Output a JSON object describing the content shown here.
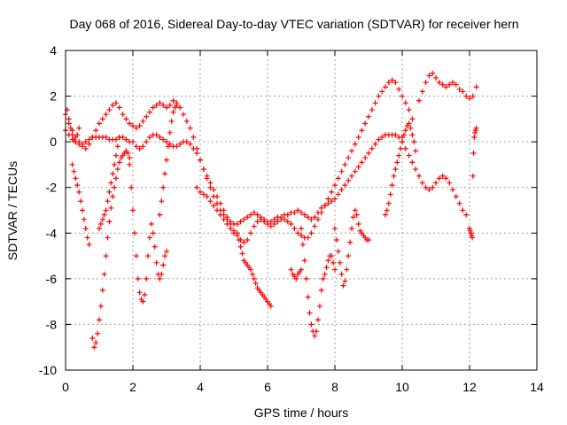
{
  "chart_data": {
    "type": "scatter",
    "title": "Day 068 of 2016, Sidereal Day-to-day VTEC variation (SDTVAR) for receiver hern",
    "xlabel": "GPS time / hours",
    "ylabel": "SDTVAR / TECUs",
    "xlim": [
      0,
      14
    ],
    "ylim": [
      -10,
      4
    ],
    "xticks": [
      0,
      2,
      4,
      6,
      8,
      10,
      12,
      14
    ],
    "yticks": [
      -10,
      -8,
      -6,
      -4,
      -2,
      0,
      2,
      4
    ],
    "grid": true,
    "marker": "+",
    "color": "#ff0000",
    "series": [
      {
        "x": [
          0.0,
          0.1,
          0.2,
          0.3,
          0.4,
          0.5,
          0.6,
          0.7,
          0.8,
          0.9,
          1.0,
          1.1,
          1.2,
          1.3,
          1.4,
          1.5,
          1.6,
          1.7,
          1.8,
          1.9,
          2.0,
          2.1,
          2.2,
          2.3,
          2.4,
          2.5,
          2.6,
          2.7,
          2.8,
          2.9,
          3.0,
          3.1,
          3.2,
          3.3,
          3.4,
          3.5,
          3.6,
          3.7,
          3.8,
          3.9,
          4.0,
          4.1,
          4.2,
          4.3,
          4.4,
          4.5,
          4.6,
          4.7,
          4.8,
          4.9,
          5.0,
          5.1,
          5.2,
          5.3,
          5.4,
          5.5,
          5.6,
          5.7,
          5.8,
          5.9,
          6.0,
          6.1,
          6.2,
          6.3,
          6.4,
          6.5,
          6.6,
          6.7,
          6.8,
          6.9,
          7.0,
          7.1,
          7.2,
          7.3,
          7.4,
          7.5,
          7.6,
          7.7,
          7.8,
          7.9,
          8.0,
          8.1,
          8.2,
          8.3,
          8.4,
          8.5,
          8.6,
          8.7,
          8.8,
          8.9,
          9.0,
          9.1,
          9.2,
          9.3,
          9.4,
          9.5,
          9.6,
          9.7,
          9.8,
          9.9,
          10.0,
          10.1,
          10.2,
          10.3
        ],
        "y": [
          1.2,
          0.8,
          0.5,
          0.2,
          0.0,
          -0.2,
          -0.3,
          -0.1,
          0.2,
          0.5,
          0.8,
          1.0,
          1.2,
          1.4,
          1.6,
          1.7,
          1.5,
          1.2,
          1.0,
          0.8,
          0.7,
          0.6,
          0.7,
          0.9,
          1.1,
          1.3,
          1.5,
          1.6,
          1.7,
          1.6,
          1.5,
          1.6,
          1.8,
          1.7,
          1.5,
          1.2,
          0.9,
          0.6,
          0.2,
          -0.3,
          -0.8,
          -1.2,
          -1.5,
          -1.8,
          -2.1,
          -2.4,
          -2.7,
          -3.0,
          -3.3,
          -3.6,
          -3.9,
          -4.1,
          -4.3,
          -4.4,
          -4.3,
          -4.0,
          -3.7,
          -3.5,
          -3.4,
          -3.5,
          -3.6,
          -3.7,
          -3.6,
          -3.5,
          -3.4,
          -3.4,
          -3.5,
          -3.6,
          -3.8,
          -4.0,
          -4.1,
          -4.2,
          -4.2,
          -4.0,
          -3.7,
          -3.4,
          -3.1,
          -2.8,
          -2.5,
          -2.2,
          -1.9,
          -1.6,
          -1.3,
          -1.0,
          -0.7,
          -0.4,
          -0.1,
          0.2,
          0.5,
          0.8,
          1.1,
          1.4,
          1.7,
          2.0,
          2.2,
          2.4,
          2.6,
          2.7,
          2.6,
          2.3,
          2.0,
          1.7,
          1.4,
          1.0
        ]
      },
      {
        "x": [
          0.0,
          0.1,
          0.2,
          0.3,
          0.4,
          0.5,
          0.6,
          0.7,
          0.8,
          0.9,
          1.0,
          1.1,
          1.2,
          1.3,
          1.4,
          1.5,
          1.6,
          1.7,
          1.8,
          1.9,
          2.0,
          2.1,
          2.2,
          2.3,
          2.4,
          2.5,
          2.6,
          2.7,
          2.8,
          2.9,
          3.0,
          3.1,
          3.2,
          3.3,
          3.4,
          3.5,
          3.6,
          3.7,
          3.8,
          3.9,
          4.0,
          4.1,
          4.2,
          4.3,
          4.4,
          4.5,
          4.6,
          4.7,
          4.8,
          4.9,
          5.0,
          5.1,
          5.2,
          5.3,
          5.4,
          5.5,
          5.6,
          5.7,
          5.8,
          5.9,
          6.0,
          6.1,
          6.2,
          6.3,
          6.4,
          6.5,
          6.6,
          6.7,
          6.8,
          6.9,
          7.0,
          7.1,
          7.2,
          7.3,
          7.4,
          7.5,
          7.6,
          7.7,
          7.8,
          7.9,
          8.0,
          8.1,
          8.2,
          8.3,
          8.4,
          8.5,
          8.6,
          8.7,
          8.8,
          8.9,
          9.0,
          9.1,
          9.2,
          9.3,
          9.4,
          9.5,
          9.6,
          9.7,
          9.8,
          9.9,
          10.0
        ],
        "y": [
          0.5,
          0.3,
          0.1,
          0.0,
          -0.1,
          -0.1,
          0.0,
          0.1,
          0.2,
          0.2,
          0.2,
          0.2,
          0.2,
          0.1,
          0.1,
          0.1,
          0.2,
          0.2,
          0.1,
          0.0,
          0.0,
          -0.2,
          -0.3,
          -0.2,
          0.0,
          0.2,
          0.3,
          0.3,
          0.2,
          0.1,
          0.0,
          -0.1,
          -0.2,
          -0.2,
          -0.1,
          0.0,
          0.0,
          -0.1,
          -0.3,
          -0.5,
          -0.8,
          -1.2,
          -1.6,
          -2.0,
          -2.4,
          -2.7,
          -3.0,
          -3.2,
          -3.4,
          -3.5,
          -3.6,
          -3.6,
          -3.5,
          -3.4,
          -3.3,
          -3.2,
          -3.1,
          -3.2,
          -3.3,
          -3.4,
          -3.5,
          -3.5,
          -3.4,
          -3.3,
          -3.3,
          -3.2,
          -3.2,
          -3.1,
          -3.1,
          -3.0,
          -3.1,
          -3.2,
          -3.3,
          -3.4,
          -3.3,
          -3.1,
          -2.9,
          -2.8,
          -2.7,
          -2.6,
          -2.5,
          -2.3,
          -2.1,
          -1.9,
          -1.7,
          -1.5,
          -1.3,
          -1.1,
          -0.9,
          -0.7,
          -0.5,
          -0.3,
          -0.1,
          0.1,
          0.2,
          0.3,
          0.3,
          0.3,
          0.3,
          0.2,
          0.2
        ]
      },
      {
        "x": [
          0.2,
          0.25,
          0.3,
          0.35,
          0.4,
          0.45,
          0.5,
          0.55,
          0.6,
          0.65,
          0.7
        ],
        "y": [
          -1.0,
          -1.3,
          -1.6,
          -1.9,
          -2.2,
          -2.6,
          -3.0,
          -3.4,
          -3.8,
          -4.2,
          -4.5
        ]
      },
      {
        "x": [
          0.8,
          0.85,
          0.9,
          0.95,
          1.0,
          1.05,
          1.1,
          1.15,
          1.2,
          1.25,
          1.3,
          1.35,
          1.4,
          1.45,
          1.5,
          1.55,
          1.6,
          1.65,
          1.7,
          1.75,
          1.8,
          1.85,
          1.9
        ],
        "y": [
          -8.6,
          -9.0,
          -8.8,
          -8.4,
          -7.8,
          -7.2,
          -6.5,
          -5.8,
          -5.0,
          -4.2,
          -3.5,
          -2.9,
          -2.4,
          -2.0,
          -1.6,
          -1.2,
          -0.9,
          -0.7,
          -0.6,
          -0.5,
          -0.4,
          -0.5,
          -0.7
        ]
      },
      {
        "x": [
          1.9,
          1.95,
          2.0,
          2.05,
          2.1,
          2.15,
          2.2,
          2.25,
          2.3,
          2.35,
          2.4,
          2.45,
          2.5,
          2.55,
          2.6,
          2.65,
          2.7,
          2.75,
          2.8,
          2.85,
          2.9,
          2.95,
          3.0
        ],
        "y": [
          -1.0,
          -2.0,
          -3.0,
          -4.0,
          -5.0,
          -6.0,
          -6.6,
          -6.9,
          -7.0,
          -6.7,
          -6.0,
          -5.0,
          -4.2,
          -3.6,
          -4.0,
          -4.6,
          -5.3,
          -5.8,
          -6.0,
          -5.8,
          -5.4,
          -5.0,
          -4.8
        ]
      },
      {
        "x": [
          2.8,
          2.85,
          2.9,
          2.95,
          3.0,
          3.05,
          3.1,
          3.15,
          3.2,
          3.25,
          3.3
        ],
        "y": [
          -3.2,
          -2.6,
          -2.0,
          -1.4,
          -0.8,
          -0.2,
          0.4,
          0.9,
          1.3,
          1.5,
          1.6
        ]
      },
      {
        "x": [
          5.1,
          5.15,
          5.2,
          5.25,
          5.3,
          5.35,
          5.4,
          5.45,
          5.5,
          5.55,
          5.6,
          5.65,
          5.7,
          5.75,
          5.8,
          5.85,
          5.9,
          5.95,
          6.0,
          6.05,
          6.1
        ],
        "y": [
          -4.0,
          -4.3,
          -4.6,
          -4.9,
          -5.2,
          -5.3,
          -5.4,
          -5.5,
          -5.6,
          -5.8,
          -6.0,
          -6.2,
          -6.4,
          -6.5,
          -6.6,
          -6.7,
          -6.8,
          -6.9,
          -7.0,
          -7.1,
          -7.2
        ]
      },
      {
        "x": [
          7.0,
          7.05,
          7.1,
          7.15,
          7.2,
          7.25,
          7.3,
          7.35,
          7.4,
          7.45,
          7.5,
          7.55,
          7.6,
          7.65,
          7.7,
          7.75,
          7.8,
          7.85,
          7.9,
          7.95,
          8.0
        ],
        "y": [
          -3.8,
          -4.5,
          -5.2,
          -6.0,
          -6.8,
          -7.5,
          -8.0,
          -8.3,
          -8.5,
          -8.3,
          -7.8,
          -7.2,
          -6.5,
          -6.0,
          -5.8,
          -5.5,
          -5.2,
          -5.0,
          -5.0,
          -5.3,
          -5.6
        ]
      },
      {
        "x": [
          10.5,
          10.6,
          10.7,
          10.8,
          10.9,
          11.0,
          11.1,
          11.2,
          11.3,
          11.4,
          11.5,
          11.6,
          11.7,
          11.8,
          11.9,
          12.0,
          12.1,
          12.2
        ],
        "y": [
          1.8,
          2.2,
          2.6,
          2.9,
          3.0,
          2.8,
          2.6,
          2.5,
          2.4,
          2.5,
          2.6,
          2.5,
          2.3,
          2.2,
          2.0,
          1.9,
          2.0,
          2.4
        ]
      },
      {
        "x": [
          10.0,
          10.1,
          10.2,
          10.3,
          10.4,
          10.5,
          10.6,
          10.7,
          10.8,
          10.9,
          11.0,
          11.1,
          11.2,
          11.3,
          11.4,
          11.5,
          11.6,
          11.7,
          11.8,
          11.9
        ],
        "y": [
          0.0,
          -0.3,
          -0.6,
          -0.9,
          -1.2,
          -1.5,
          -1.8,
          -2.0,
          -2.1,
          -2.0,
          -1.8,
          -1.6,
          -1.5,
          -1.6,
          -1.8,
          -2.1,
          -2.4,
          -2.7,
          -3.0,
          -3.2
        ]
      },
      {
        "x": [
          12.0,
          12.02,
          12.04,
          12.06,
          12.08,
          12.1,
          12.12,
          12.14,
          12.16,
          12.18,
          12.2
        ],
        "y": [
          -3.8,
          -3.9,
          -4.0,
          -4.1,
          -4.2,
          -1.5,
          -0.5,
          0.2,
          0.4,
          0.5,
          0.6
        ]
      },
      {
        "x": [
          9.5,
          9.55,
          9.6,
          9.65,
          9.7,
          9.75,
          9.8,
          9.85,
          9.9,
          9.95,
          10.0,
          10.05,
          10.1,
          10.15,
          10.2,
          10.25,
          10.3,
          10.35,
          10.4
        ],
        "y": [
          -3.2,
          -3.0,
          -2.7,
          -2.3,
          -1.9,
          -1.5,
          -1.2,
          -0.9,
          -0.6,
          -0.3,
          0.0,
          0.3,
          0.5,
          0.7,
          0.8,
          0.6,
          0.3,
          0.0,
          -0.4
        ]
      },
      {
        "x": [
          8.0,
          8.05,
          8.1,
          8.15,
          8.2,
          8.25,
          8.3,
          8.35,
          8.4,
          8.45,
          8.5,
          8.55,
          8.6,
          8.65,
          8.7,
          8.75,
          8.8,
          8.85,
          8.9,
          8.95,
          9.0
        ],
        "y": [
          -3.8,
          -4.3,
          -4.8,
          -5.3,
          -5.8,
          -6.3,
          -6.1,
          -5.6,
          -5.0,
          -4.4,
          -3.8,
          -3.3,
          -3.0,
          -3.2,
          -3.6,
          -3.9,
          -4.0,
          -4.1,
          -4.2,
          -4.3,
          -4.3
        ]
      },
      {
        "x": [
          6.7,
          6.75,
          6.8,
          6.85,
          6.9,
          6.95,
          7.0
        ],
        "y": [
          -5.6,
          -5.8,
          -5.9,
          -6.0,
          -5.8,
          -5.7,
          -5.6
        ]
      },
      {
        "x": [
          1.0,
          1.05,
          1.1,
          1.15,
          1.2,
          1.25,
          1.3,
          1.35,
          1.4,
          1.45,
          1.5,
          1.55,
          1.6
        ],
        "y": [
          -3.8,
          -3.6,
          -3.4,
          -3.2,
          -3.0,
          -2.6,
          -2.2,
          -1.8,
          -1.4,
          -1.0,
          -0.6,
          -0.2,
          0.2
        ]
      },
      {
        "x": [
          3.9,
          4.0,
          4.1,
          4.2,
          4.3,
          4.4,
          4.5,
          4.6,
          4.7,
          4.8,
          4.9,
          5.0
        ],
        "y": [
          -2.0,
          -2.2,
          -2.3,
          -2.4,
          -2.6,
          -2.8,
          -3.0,
          -3.2,
          -3.4,
          -3.6,
          -3.8,
          -4.0
        ]
      },
      {
        "x": [
          0.05,
          0.1,
          0.15,
          0.2,
          0.25,
          0.3,
          0.35,
          0.4
        ],
        "y": [
          1.4,
          1.0,
          0.6,
          0.3,
          0.1,
          0.0,
          0.3,
          0.6
        ]
      }
    ]
  }
}
